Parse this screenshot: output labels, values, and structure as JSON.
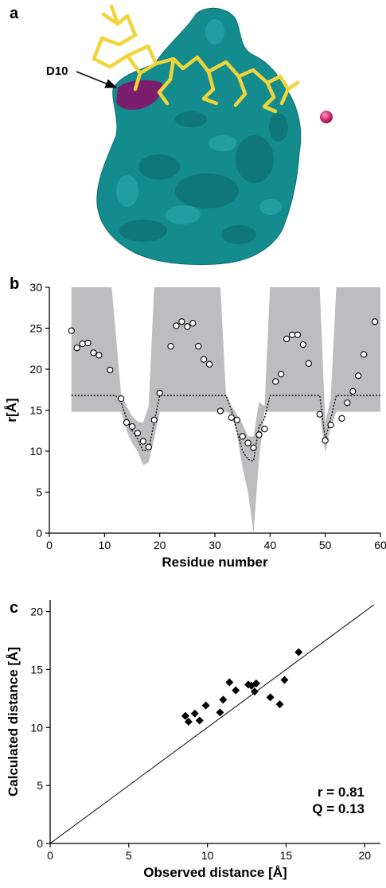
{
  "panel_letters": [
    "a",
    "b",
    "c"
  ],
  "structure": {
    "label": "D10",
    "surface_color": "#148c8e",
    "highlight_color": "#7b1e6e",
    "peptide_color": "#f0d43a",
    "ion_color": "#d6286e"
  },
  "chart_data": [
    {
      "type": "scatter",
      "panel": "b",
      "xlabel": "Residue number",
      "ylabel": "r[Å]",
      "xlim": [
        0,
        60
      ],
      "ylim": [
        0,
        30
      ],
      "xticks": [
        0,
        10,
        20,
        30,
        40,
        50,
        60
      ],
      "yticks": [
        0,
        5,
        10,
        15,
        20,
        25,
        30
      ],
      "grid": false,
      "band_color": "#bdbdbf",
      "band": {
        "x": [
          4,
          11.3,
          13,
          14,
          15,
          16,
          17,
          18,
          19,
          20,
          31,
          32,
          33,
          34,
          35,
          36,
          37,
          38,
          39,
          40,
          49,
          50,
          51,
          52,
          53,
          60
        ],
        "lower": [
          14.8,
          14.8,
          14.8,
          12.5,
          11,
          10,
          8.3,
          8.6,
          11.5,
          14.8,
          14.8,
          14.8,
          14.5,
          12,
          8,
          5,
          0,
          9,
          14.8,
          14.8,
          14.8,
          9.8,
          13,
          14.8,
          14.8,
          14.8
        ],
        "upper": [
          30,
          30,
          17,
          15.5,
          14.3,
          13.6,
          13.5,
          15.5,
          30,
          30,
          30,
          17,
          15.5,
          14.5,
          13.3,
          11.8,
          11.8,
          16,
          15.5,
          30,
          30,
          13.5,
          16.5,
          30,
          30,
          30
        ]
      },
      "dotted_curve": {
        "x": [
          4,
          12,
          13,
          14,
          15,
          16,
          17,
          18,
          19,
          20,
          32,
          33,
          34,
          35,
          36,
          37,
          38,
          39,
          40,
          49,
          50,
          51,
          52,
          53,
          60
        ],
        "y": [
          16.8,
          16.8,
          16,
          14,
          12.5,
          11.5,
          10,
          10.2,
          13.5,
          16.8,
          16.8,
          15,
          12.5,
          10,
          9,
          8.8,
          13,
          14,
          16.8,
          16.8,
          11.5,
          14,
          16.8,
          16.8,
          16.8
        ]
      },
      "series": [
        {
          "marker": "open-circle",
          "x": [
            4,
            5,
            6,
            7,
            8,
            9,
            11,
            13,
            14,
            15,
            16,
            17,
            18,
            19,
            20,
            22,
            23,
            24,
            25,
            26,
            27,
            28,
            29,
            31,
            33,
            34,
            35,
            36,
            37,
            38,
            39,
            41,
            42,
            43,
            44,
            45,
            46,
            47,
            49,
            50,
            51,
            53,
            54,
            55,
            56,
            57,
            59
          ],
          "y": [
            24.7,
            22.6,
            23.1,
            23.2,
            22.0,
            21.7,
            19.9,
            16.4,
            13.5,
            13.0,
            12.2,
            11.2,
            10.5,
            13.8,
            17.1,
            22.8,
            25.3,
            25.8,
            25.2,
            25.6,
            22.8,
            21.2,
            20.6,
            14.9,
            14.1,
            13.8,
            11.8,
            11.0,
            10.4,
            12.0,
            12.7,
            18.5,
            19.4,
            23.7,
            24.2,
            24.2,
            23.0,
            20.7,
            14.5,
            11.3,
            13.2,
            14.0,
            15.9,
            17.3,
            19.2,
            21.8,
            25.8
          ]
        }
      ]
    },
    {
      "type": "scatter",
      "panel": "c",
      "xlabel": "Observed distance [Å]",
      "ylabel": "Calculated distance [Å]",
      "xlim": [
        0,
        21
      ],
      "ylim": [
        0,
        21
      ],
      "xticks": [
        0,
        5,
        10,
        15,
        20
      ],
      "yticks": [
        0,
        5,
        10,
        15,
        20
      ],
      "grid": false,
      "identity_line": true,
      "annotations": [
        "r = 0.81",
        "Q = 0.13"
      ],
      "series": [
        {
          "marker": "filled-diamond",
          "x": [
            8.6,
            8.8,
            9.2,
            9.5,
            9.9,
            10.8,
            11.0,
            11.4,
            11.8,
            12.6,
            12.8,
            13.0,
            13.1,
            14.0,
            14.6,
            14.9,
            15.8
          ],
          "y": [
            11.0,
            10.5,
            11.2,
            10.6,
            11.9,
            11.3,
            12.4,
            13.9,
            13.2,
            13.7,
            13.6,
            13.1,
            13.8,
            12.6,
            12.0,
            14.1,
            16.5
          ]
        }
      ]
    }
  ]
}
